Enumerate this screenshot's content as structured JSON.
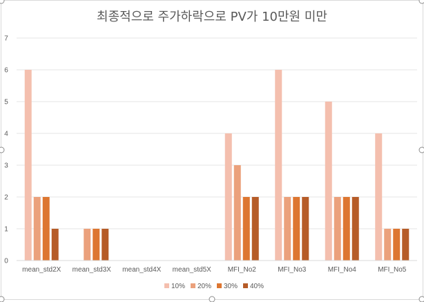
{
  "chart_data": {
    "type": "bar",
    "title": "최종적으로 주가하락으로 PV가 10만원 미만",
    "xlabel": "",
    "ylabel": "",
    "ylim": [
      0,
      7
    ],
    "yticks": [
      "0",
      "1",
      "2",
      "3",
      "4",
      "5",
      "6",
      "7"
    ],
    "grid": true,
    "legend": "bottom",
    "categories": [
      "mean_std2X",
      "mean_std3X",
      "mean_std4X",
      "mean_std5X",
      "MFI_No2",
      "MFI_No3",
      "MFI_No4",
      "MFI_No5"
    ],
    "series": [
      {
        "name": "10%",
        "color": "#F4BFAE",
        "values": [
          6,
          0,
          0,
          0,
          4,
          6,
          5,
          4
        ]
      },
      {
        "name": "20%",
        "color": "#EBA17C",
        "values": [
          2,
          1,
          0,
          0,
          3,
          2,
          2,
          1
        ]
      },
      {
        "name": "30%",
        "color": "#DD7631",
        "values": [
          2,
          1,
          0,
          0,
          2,
          2,
          2,
          1
        ]
      },
      {
        "name": "40%",
        "color": "#B65C28",
        "values": [
          1,
          1,
          0,
          0,
          2,
          2,
          2,
          1
        ]
      }
    ]
  }
}
